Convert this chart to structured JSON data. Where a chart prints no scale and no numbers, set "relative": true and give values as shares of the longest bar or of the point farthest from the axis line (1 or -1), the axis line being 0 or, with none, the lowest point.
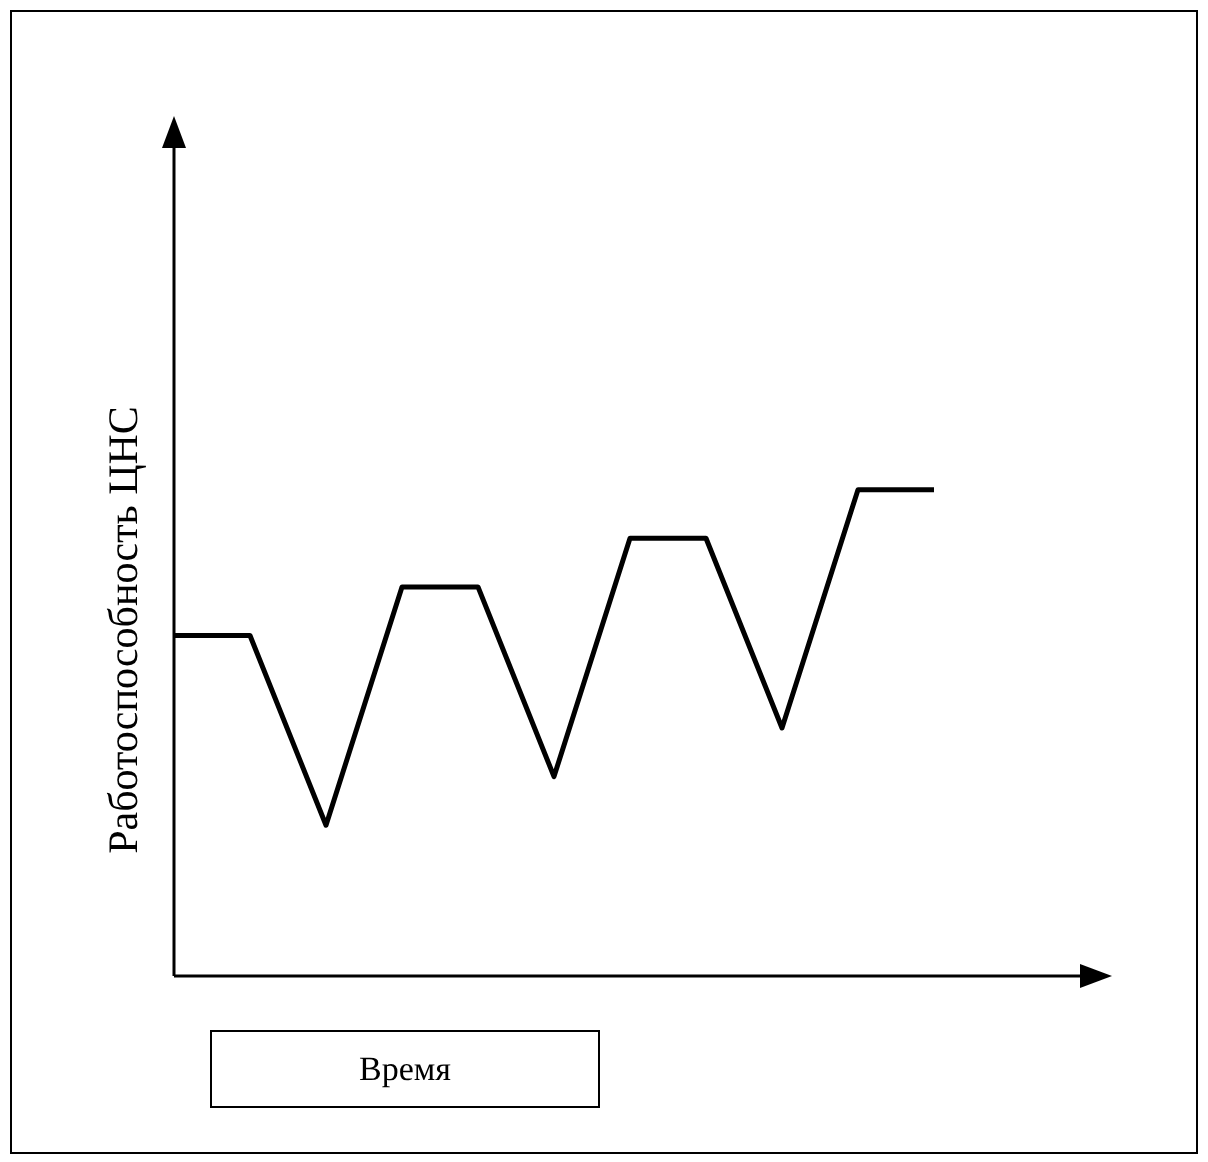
{
  "chart_data": {
    "type": "line",
    "relative": true,
    "xlabel": "Время",
    "ylabel": "Работоспособность ЦНС",
    "categories": [
      null,
      null,
      null,
      null,
      null,
      null,
      null,
      null,
      null,
      null,
      null
    ],
    "tick_labels": false,
    "legend": false,
    "marker": "none",
    "line_style": "solid",
    "series": [
      {
        "color": "#000000",
        "values": [
          0.7,
          0.7,
          0.31,
          0.8,
          0.8,
          0.41,
          0.9,
          0.9,
          0.51,
          1,
          1
        ]
      }
    ]
  }
}
